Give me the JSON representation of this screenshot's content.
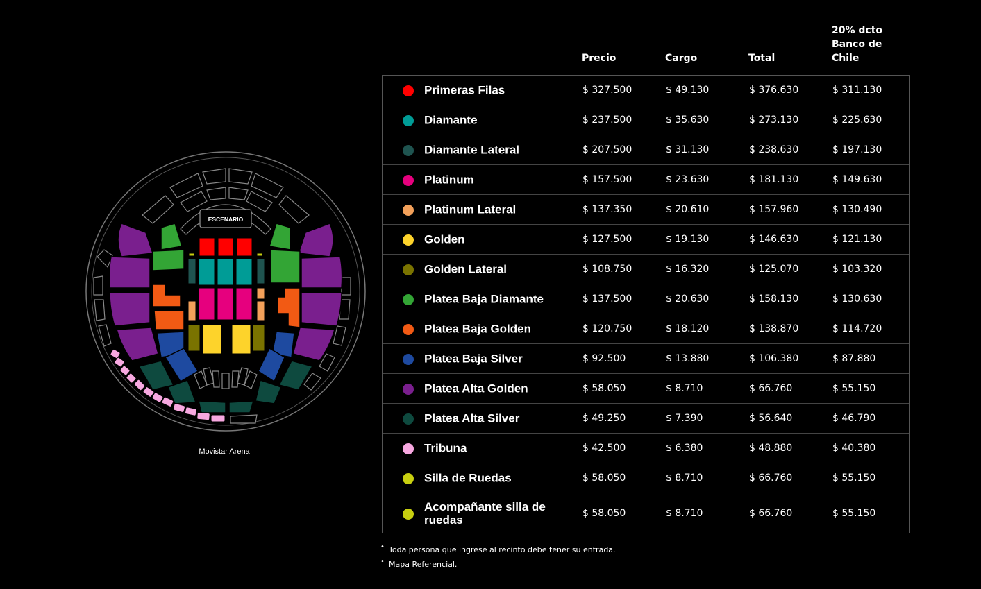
{
  "venue_name": "Movistar Arena",
  "stage_label": "ESCENARIO",
  "table": {
    "headers": {
      "price": "Precio",
      "charge": "Cargo",
      "total": "Total",
      "discount_line1": "20% dcto",
      "discount_line2": "Banco de Chile"
    },
    "rows": [
      {
        "zone": "Primeras Filas",
        "color": "#ff0000",
        "price": "$ 327.500",
        "charge": "$ 49.130",
        "total": "$ 376.630",
        "discount": "$ 311.130"
      },
      {
        "zone": "Diamante",
        "color": "#009c96",
        "price": "$ 237.500",
        "charge": "$ 35.630",
        "total": "$ 273.130",
        "discount": "$ 225.630"
      },
      {
        "zone": "Diamante Lateral",
        "color": "#1f5450",
        "price": "$ 207.500",
        "charge": "$ 31.130",
        "total": "$ 238.630",
        "discount": "$ 197.130"
      },
      {
        "zone": "Platinum",
        "color": "#e6007e",
        "price": "$ 157.500",
        "charge": "$ 23.630",
        "total": "$ 181.130",
        "discount": "$ 149.630"
      },
      {
        "zone": "Platinum Lateral",
        "color": "#f2a05a",
        "price": "$ 137.350",
        "charge": "$ 20.610",
        "total": "$ 157.960",
        "discount": "$ 130.490"
      },
      {
        "zone": "Golden",
        "color": "#fdd32b",
        "price": "$ 127.500",
        "charge": "$ 19.130",
        "total": "$ 146.630",
        "discount": "$ 121.130"
      },
      {
        "zone": "Golden Lateral",
        "color": "#7a7300",
        "price": "$ 108.750",
        "charge": "$ 16.320",
        "total": "$ 125.070",
        "discount": "$ 103.320"
      },
      {
        "zone": "Platea Baja Diamante",
        "color": "#33a535",
        "price": "$ 137.500",
        "charge": "$ 20.630",
        "total": "$ 158.130",
        "discount": "$ 130.630"
      },
      {
        "zone": "Platea Baja Golden",
        "color": "#f25a14",
        "price": "$ 120.750",
        "charge": "$ 18.120",
        "total": "$ 138.870",
        "discount": "$ 114.720"
      },
      {
        "zone": "Platea Baja Silver",
        "color": "#1e4aa0",
        "price": "$ 92.500",
        "charge": "$ 13.880",
        "total": "$ 106.380",
        "discount": "$ 87.880"
      },
      {
        "zone": "Platea Alta Golden",
        "color": "#7a1f8e",
        "price": "$ 58.050",
        "charge": "$ 8.710",
        "total": "$ 66.760",
        "discount": "$ 55.150"
      },
      {
        "zone": "Platea Alta Silver",
        "color": "#0e4a3f",
        "price": "$ 49.250",
        "charge": "$ 7.390",
        "total": "$ 56.640",
        "discount": "$ 46.790"
      },
      {
        "zone": "Tribuna",
        "color": "#f7a8e0",
        "price": "$ 42.500",
        "charge": "$ 6.380",
        "total": "$ 48.880",
        "discount": "$ 40.380"
      },
      {
        "zone": "Silla de Ruedas",
        "color": "#c8cf10",
        "price": "$ 58.050",
        "charge": "$ 8.710",
        "total": "$ 66.760",
        "discount": "$ 55.150"
      },
      {
        "zone": "Acompañante silla de ruedas",
        "color": "#c8cf10",
        "price": "$ 58.050",
        "charge": "$ 8.710",
        "total": "$ 66.760",
        "discount": "$ 55.150"
      }
    ]
  },
  "notes": [
    "Toda persona que ingrese al recinto debe tener su entrada.",
    "Mapa Referencial."
  ]
}
